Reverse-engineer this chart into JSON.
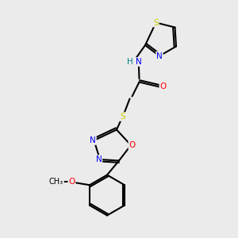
{
  "background_color": "#ebebeb",
  "bond_color": "#000000",
  "atom_colors": {
    "S": "#cccc00",
    "N": "#0000ff",
    "O": "#ff0000",
    "H": "#008080",
    "C": "#000000"
  }
}
